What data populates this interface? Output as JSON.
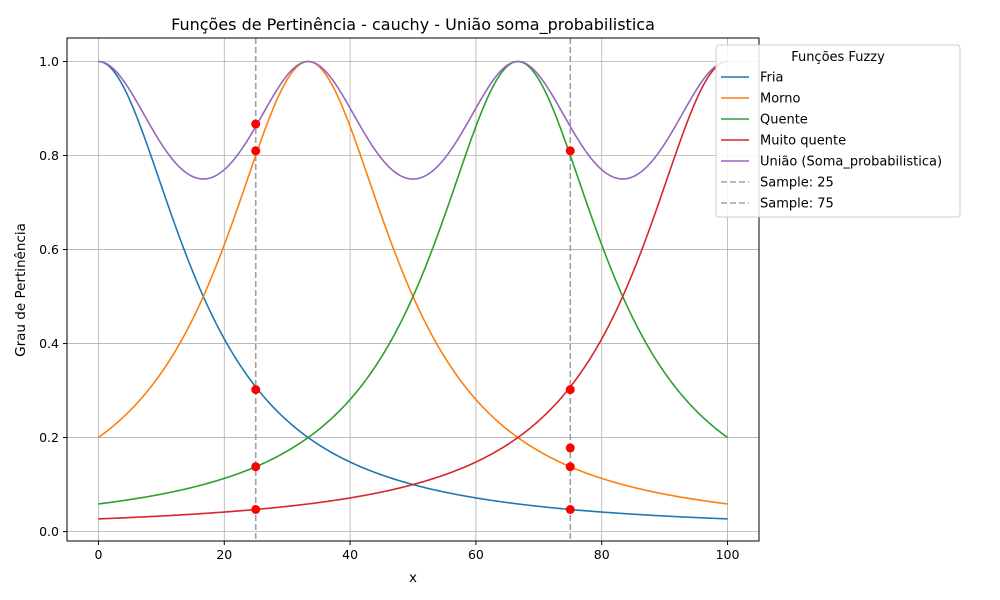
{
  "chart_data": {
    "type": "line",
    "title": "Funções de Pertinência - cauchy - União soma_probabilistica",
    "xlabel": "x",
    "ylabel": "Grau de Pertinência",
    "xlim": [
      -5,
      105
    ],
    "ylim": [
      -0.02,
      1.05
    ],
    "x_ticks": [
      0,
      20,
      40,
      60,
      80,
      100
    ],
    "x_tick_labels": [
      "0",
      "20",
      "40",
      "60",
      "80",
      "100"
    ],
    "y_ticks": [
      0.0,
      0.2,
      0.4,
      0.6,
      0.8,
      1.0
    ],
    "y_tick_labels": [
      "0.0",
      "0.2",
      "0.4",
      "0.6",
      "0.8",
      "1.0"
    ],
    "grid": true,
    "legend": {
      "title": "Funções Fuzzy",
      "placement": "top-right-outside"
    },
    "series": [
      {
        "name": "Fria",
        "color": "#1f77b4",
        "function": "cauchy",
        "center": 0,
        "width": 16.67
      },
      {
        "name": "Morno",
        "color": "#ff7f0e",
        "function": "cauchy",
        "center": 33.33,
        "width": 16.67
      },
      {
        "name": "Quente",
        "color": "#2ca02c",
        "function": "cauchy",
        "center": 66.67,
        "width": 16.67
      },
      {
        "name": "Muito quente",
        "color": "#d62728",
        "function": "cauchy",
        "center": 100,
        "width": 16.67
      },
      {
        "name": "União (Soma_probabilistica)",
        "color": "#9467bd",
        "function": "union",
        "center": null,
        "width": null
      }
    ],
    "samples": [
      {
        "name": "Sample: 25",
        "x": 25,
        "color": "#a0a0a0",
        "points": [
          0.867,
          0.81,
          0.302,
          0.138,
          0.047
        ]
      },
      {
        "name": "Sample: 75",
        "x": 75,
        "color": "#a0a0a0",
        "points": [
          0.81,
          0.302,
          0.178,
          0.138,
          0.047
        ]
      }
    ],
    "marker_color": "#ff0000"
  }
}
